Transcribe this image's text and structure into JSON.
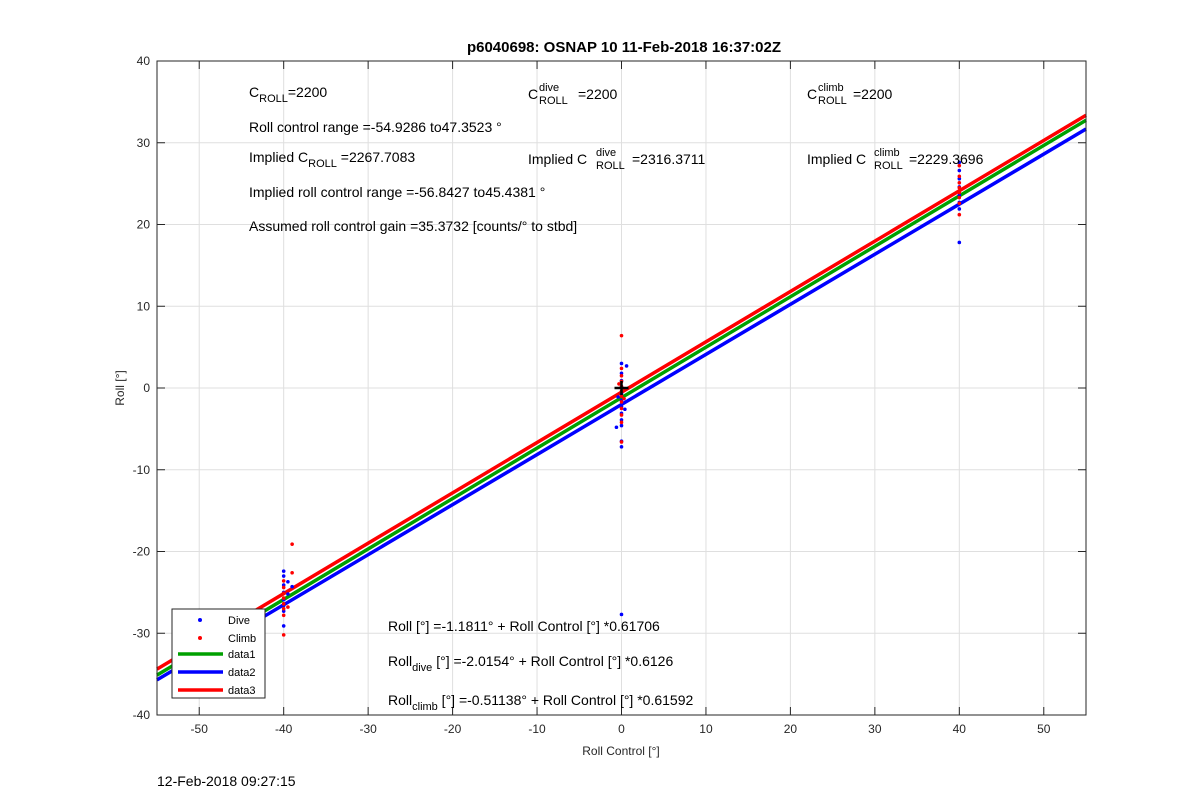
{
  "chart_data": {
    "type": "scatter",
    "title": "p6040698: OSNAP 10 11-Feb-2018 16:37:02Z",
    "xlabel": "Roll Control [°]",
    "ylabel": "Roll [°]",
    "xlim": [
      -55,
      55
    ],
    "ylim": [
      -40,
      40
    ],
    "xticks": [
      -50,
      -40,
      -30,
      -20,
      -10,
      0,
      10,
      20,
      30,
      40,
      50
    ],
    "yticks": [
      -40,
      -30,
      -20,
      -10,
      0,
      10,
      20,
      30,
      40
    ],
    "grid": true,
    "legend_position": "bottom-left",
    "series": [
      {
        "name": "Dive",
        "kind": "scatter",
        "color": "#0000ff",
        "points": [
          [
            -40,
            -22.4
          ],
          [
            -40,
            -23.0
          ],
          [
            -40,
            -24.1
          ],
          [
            -40,
            -25.0
          ],
          [
            -40,
            -25.9
          ],
          [
            -40,
            -26.6
          ],
          [
            -40,
            -27.3
          ],
          [
            -40,
            -29.1
          ],
          [
            -39.5,
            -23.7
          ],
          [
            -39.5,
            -25.2
          ],
          [
            -39,
            -24.3
          ],
          [
            0,
            3.0
          ],
          [
            0,
            1.8
          ],
          [
            0,
            0.9
          ],
          [
            0,
            0.1
          ],
          [
            0,
            -0.7
          ],
          [
            0,
            -1.5
          ],
          [
            0,
            -2.3
          ],
          [
            0,
            -3.1
          ],
          [
            0,
            -3.9
          ],
          [
            0,
            -4.6
          ],
          [
            0,
            -6.5
          ],
          [
            0,
            -7.2
          ],
          [
            0,
            -27.7
          ],
          [
            -0.4,
            -1.1
          ],
          [
            0.4,
            -2.6
          ],
          [
            -0.6,
            -4.8
          ],
          [
            0.6,
            2.7
          ],
          [
            40,
            27.6
          ],
          [
            40,
            26.6
          ],
          [
            40,
            25.6
          ],
          [
            40,
            24.6
          ],
          [
            40,
            23.6
          ],
          [
            40,
            22.7
          ],
          [
            40,
            21.9
          ],
          [
            40,
            17.8
          ]
        ]
      },
      {
        "name": "Climb",
        "kind": "scatter",
        "color": "#ff0000",
        "points": [
          [
            -40,
            -23.6
          ],
          [
            -40,
            -24.4
          ],
          [
            -40,
            -25.1
          ],
          [
            -40,
            -25.7
          ],
          [
            -40,
            -26.4
          ],
          [
            -40,
            -27.0
          ],
          [
            -40,
            -27.8
          ],
          [
            -40,
            -30.2
          ],
          [
            -39,
            -19.1
          ],
          [
            -39,
            -22.6
          ],
          [
            -39.5,
            -26.8
          ],
          [
            0,
            6.4
          ],
          [
            0,
            2.4
          ],
          [
            0,
            1.5
          ],
          [
            0,
            0.8
          ],
          [
            0,
            0.2
          ],
          [
            0,
            -0.4
          ],
          [
            0,
            -1.0
          ],
          [
            0,
            -1.7
          ],
          [
            0,
            -2.5
          ],
          [
            0,
            -3.3
          ],
          [
            0,
            -4.2
          ],
          [
            0,
            -6.6
          ],
          [
            -0.3,
            0.5
          ],
          [
            0.3,
            -1.3
          ],
          [
            40,
            27.2
          ],
          [
            40,
            25.9
          ],
          [
            40,
            25.1
          ],
          [
            40,
            24.5
          ],
          [
            40,
            23.9
          ],
          [
            40,
            23.3
          ],
          [
            40,
            22.6
          ],
          [
            40,
            21.2
          ]
        ]
      },
      {
        "name": "data1",
        "kind": "line",
        "color": "#00a000",
        "intercept": -1.1811,
        "slope": 0.61706
      },
      {
        "name": "data2",
        "kind": "line",
        "color": "#0000ff",
        "intercept": -2.0154,
        "slope": 0.6126
      },
      {
        "name": "data3",
        "kind": "line",
        "color": "#ff0000",
        "intercept": -0.51138,
        "slope": 0.61592
      }
    ],
    "marker": {
      "kind": "plus",
      "x": 0,
      "y": 0,
      "color": "#000000"
    },
    "annotations": {
      "c_roll": {
        "main": "C",
        "sub": "ROLL",
        "rest": "=2200"
      },
      "c_roll_dive": {
        "main": "C",
        "sup": "dive",
        "sub": "ROLL",
        "rest": " =2200"
      },
      "c_roll_climb": {
        "main": "C",
        "sup": "climb",
        "sub": "ROLL",
        "rest": " =2200"
      },
      "roll_control_range": "Roll control range =-54.9286 to47.3523 °",
      "implied_c_roll": {
        "pre": "Implied C",
        "sub": "ROLL",
        "rest": " =2267.7083"
      },
      "implied_c_roll_dive": {
        "pre": "Implied C",
        "sup": "dive",
        "sub": "ROLL",
        "rest": " =2316.3711"
      },
      "implied_c_roll_climb": {
        "pre": "Implied C",
        "sup": "climb",
        "sub": "ROLL",
        "rest": " =2229.3696"
      },
      "implied_range": "Implied roll control range =-56.8427 to45.4381 °",
      "gain": "Assumed roll control gain =35.3732 [counts/° to stbd]",
      "fit_all": "Roll [°] =-1.1811° + Roll Control [°] *0.61706",
      "fit_dive": {
        "main": "Roll",
        "sub": "dive",
        "rest": " [°] =-2.0154° + Roll Control [°] *0.6126"
      },
      "fit_climb": {
        "main": "Roll",
        "sub": "climb",
        "rest": " [°] =-0.51138° + Roll Control [°] *0.61592"
      }
    }
  },
  "footer_timestamp": "12-Feb-2018 09:27:15"
}
